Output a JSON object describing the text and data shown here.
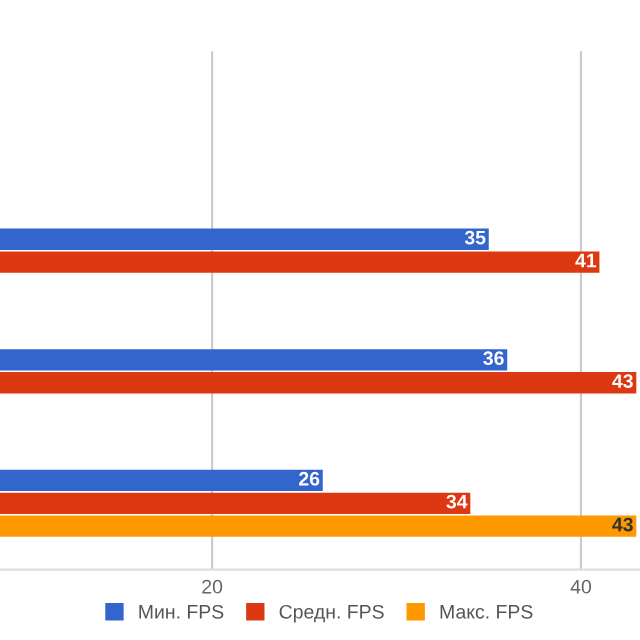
{
  "chart_data": {
    "type": "bar",
    "orientation": "horizontal",
    "categories": [
      null,
      null,
      null,
      null
    ],
    "series": [
      {
        "name": "Мин. FPS",
        "color": "#3366cc",
        "values": [
          null,
          35,
          36,
          26
        ],
        "value_labels": [
          null,
          "35",
          "36",
          "26"
        ]
      },
      {
        "name": "Средн. FPS",
        "color": "#dc3912",
        "values": [
          null,
          41,
          43,
          34
        ],
        "value_labels": [
          null,
          "41",
          "43",
          "34"
        ]
      },
      {
        "name": "Макс. FPS",
        "color": "#ff9900",
        "values": [
          null,
          null,
          null,
          43
        ],
        "value_labels": [
          null,
          null,
          null,
          "43"
        ]
      }
    ],
    "xlim": [
      8.5,
      43.2
    ],
    "xticks": [
      20,
      40
    ],
    "grid": "x",
    "legend": "bottom",
    "tick_labels": "x"
  }
}
